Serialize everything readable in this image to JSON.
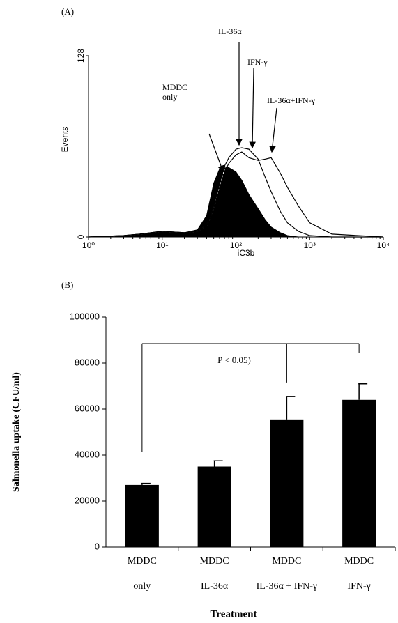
{
  "chart_data": [
    {
      "type": "line",
      "panel_label": "(A)",
      "xlabel": "iC3b",
      "ylabel": "Events",
      "log_x": true,
      "x": [
        1,
        3,
        5,
        10,
        20,
        30,
        40,
        50,
        60,
        70,
        80,
        100,
        120,
        150,
        200,
        250,
        300,
        400,
        500,
        700,
        1000,
        2000,
        10000
      ],
      "xlim": [
        1,
        10000
      ],
      "xticks": [
        {
          "value": 1,
          "label": "10⁰"
        },
        {
          "value": 10,
          "label": "10¹"
        },
        {
          "value": 100,
          "label": "10²"
        },
        {
          "value": 1000,
          "label": "10³"
        },
        {
          "value": 10000,
          "label": "10⁴"
        }
      ],
      "ylim": [
        0,
        128
      ],
      "yticks": [
        0,
        128
      ],
      "series": [
        {
          "name": "MDDC only",
          "color": "#000000",
          "filled": true,
          "values": [
            0,
            1,
            2,
            4,
            3,
            5,
            15,
            38,
            48,
            50,
            49,
            46,
            40,
            30,
            20,
            12,
            7,
            3,
            1,
            0,
            0,
            0,
            0
          ]
        },
        {
          "name": "IL-36α",
          "color": "#ffffff",
          "dashed": true,
          "values": [
            0,
            1,
            2,
            4,
            3,
            4,
            8,
            20,
            35,
            48,
            55,
            62,
            64,
            58,
            45,
            32,
            22,
            10,
            5,
            2,
            0,
            0,
            0
          ]
        },
        {
          "name": "IFN-γ",
          "color": "#000000",
          "values": [
            0,
            1,
            2,
            4,
            3,
            4,
            8,
            22,
            38,
            50,
            56,
            62,
            63,
            62,
            55,
            42,
            32,
            18,
            10,
            4,
            1,
            0,
            0
          ]
        },
        {
          "name": "IL-36α+IFN-γ",
          "color": "#000000",
          "values": [
            0,
            1,
            2,
            4,
            3,
            4,
            8,
            20,
            34,
            46,
            52,
            58,
            60,
            56,
            54,
            55,
            56,
            45,
            35,
            22,
            10,
            2,
            0
          ]
        }
      ]
    },
    {
      "type": "bar",
      "panel_label": "(B)",
      "xlabel": "Treatment",
      "ylabel": "Salmonella uptake (CFU/ml)",
      "categories": [
        [
          "MDDC",
          "only"
        ],
        [
          "MDDC",
          "IL-36α"
        ],
        [
          "MDDC",
          "IL-36α + IFN-γ"
        ],
        [
          "MDDC",
          "IFN-γ"
        ]
      ],
      "values": [
        27000,
        35000,
        55500,
        64000
      ],
      "errors": [
        700,
        2500,
        10000,
        7000
      ],
      "color": "#000000",
      "ylim": [
        0,
        100000
      ],
      "yticks": [
        0,
        20000,
        40000,
        60000,
        80000,
        100000
      ],
      "significance": {
        "label": "P < 0.05)",
        "level": 88500
      }
    }
  ]
}
